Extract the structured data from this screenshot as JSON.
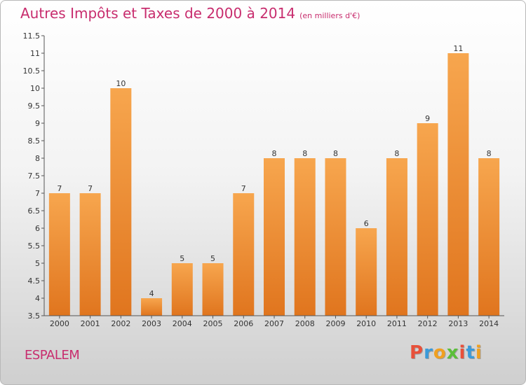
{
  "title": "Autres Impôts et Taxes de 2000 à 2014",
  "subtitle": "(en milliers d'€)",
  "place": "ESPALEM",
  "logo": "Proxiti",
  "logo_colors": [
    "#e8503a",
    "#3a9ad9",
    "#f0a020",
    "#5bbf3a",
    "#e8503a",
    "#3a9ad9",
    "#f0a020"
  ],
  "colors": {
    "bar_top": "#f7a64e",
    "bar_bottom": "#e0751e",
    "axis": "#555555",
    "title": "#c82d6e"
  },
  "chart_data": {
    "type": "bar",
    "title": "Autres Impôts et Taxes de 2000 à 2014",
    "categories": [
      "2000",
      "2001",
      "2002",
      "2003",
      "2004",
      "2005",
      "2006",
      "2007",
      "2008",
      "2009",
      "2010",
      "2011",
      "2012",
      "2013",
      "2014"
    ],
    "values": [
      7,
      7,
      10,
      4,
      5,
      5,
      7,
      8,
      8,
      8,
      6,
      8,
      9,
      11,
      8
    ],
    "ylim": [
      3.5,
      11.5
    ],
    "yticks": [
      3.5,
      4,
      4.5,
      5,
      5.5,
      6,
      6.5,
      7,
      7.5,
      8,
      8.5,
      9,
      9.5,
      10,
      10.5,
      11,
      11.5
    ],
    "ytick_labels": [
      "3.5",
      "4",
      "4.5",
      "5",
      "5.5",
      "6",
      "6.5",
      "7",
      "7.5",
      "8",
      "8.5",
      "9",
      "9.5",
      "10",
      "10.5",
      "11",
      "11.5"
    ],
    "grid": false,
    "data_labels": true
  }
}
